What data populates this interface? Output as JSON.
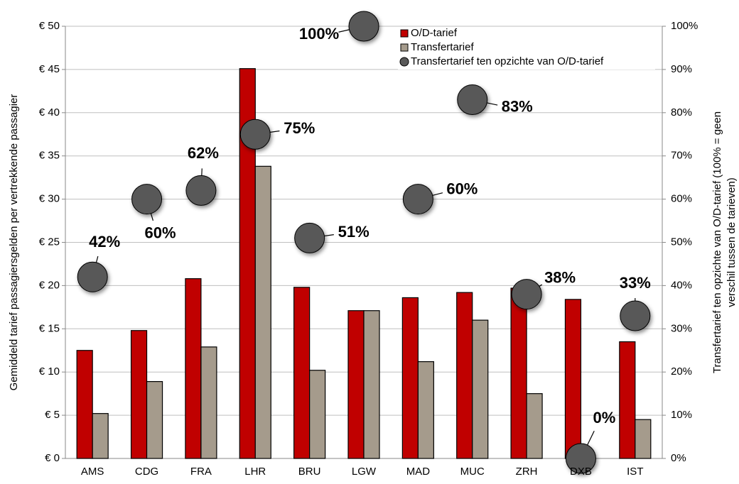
{
  "chart_data": {
    "type": "bar",
    "categories": [
      "AMS",
      "CDG",
      "FRA",
      "LHR",
      "BRU",
      "LGW",
      "MAD",
      "MUC",
      "ZRH",
      "DXB",
      "IST"
    ],
    "y_label": "Gemiddeld tarief passagiersgelden per vertrekkende passagier",
    "y2_label": [
      "Transfertarief ten opzichte van O/D-tarief (100% = geen",
      "verschil tussen de tarieven)"
    ],
    "ylim": [
      0,
      50
    ],
    "yticks": [
      {
        "value": 0,
        "label": "€ 0"
      },
      {
        "value": 5,
        "label": "€ 5"
      },
      {
        "value": 10,
        "label": "€ 10"
      },
      {
        "value": 15,
        "label": "€ 15"
      },
      {
        "value": 20,
        "label": "€ 20"
      },
      {
        "value": 25,
        "label": "€ 25"
      },
      {
        "value": 30,
        "label": "€ 30"
      },
      {
        "value": 35,
        "label": "€ 35"
      },
      {
        "value": 40,
        "label": "€ 40"
      },
      {
        "value": 45,
        "label": "€ 45"
      },
      {
        "value": 50,
        "label": "€ 50"
      }
    ],
    "y2lim": [
      0,
      100
    ],
    "y2ticks": [
      {
        "value": 0,
        "label": "0%"
      },
      {
        "value": 10,
        "label": "10%"
      },
      {
        "value": 20,
        "label": "20%"
      },
      {
        "value": 30,
        "label": "30%"
      },
      {
        "value": 40,
        "label": "40%"
      },
      {
        "value": 50,
        "label": "50%"
      },
      {
        "value": 60,
        "label": "60%"
      },
      {
        "value": 70,
        "label": "70%"
      },
      {
        "value": 80,
        "label": "80%"
      },
      {
        "value": 90,
        "label": "90%"
      },
      {
        "value": 100,
        "label": "100%"
      }
    ],
    "grid": true,
    "series": [
      {
        "name": "O/D-tarief",
        "color": "#c00000",
        "values": [
          12.5,
          14.8,
          20.8,
          45.1,
          19.8,
          17.1,
          18.6,
          19.2,
          19.7,
          18.4,
          13.5
        ]
      },
      {
        "name": "Transfertarief",
        "color": "#a59b8c",
        "values": [
          5.2,
          8.9,
          12.9,
          33.8,
          10.2,
          17.1,
          11.2,
          16.0,
          7.5,
          0,
          4.5
        ]
      },
      {
        "name": "Transfertarief ten opzichte van O/D-tarief",
        "type": "scatter",
        "axis": "y2",
        "color": "#595959",
        "values": [
          42,
          60,
          62,
          75,
          51,
          100,
          60,
          83,
          38,
          0,
          33
        ],
        "value_labels": [
          "42%",
          "60%",
          "62%",
          "75%",
          "51%",
          "100%",
          "60%",
          "83%",
          "38%",
          "0%",
          "33%"
        ]
      }
    ]
  }
}
